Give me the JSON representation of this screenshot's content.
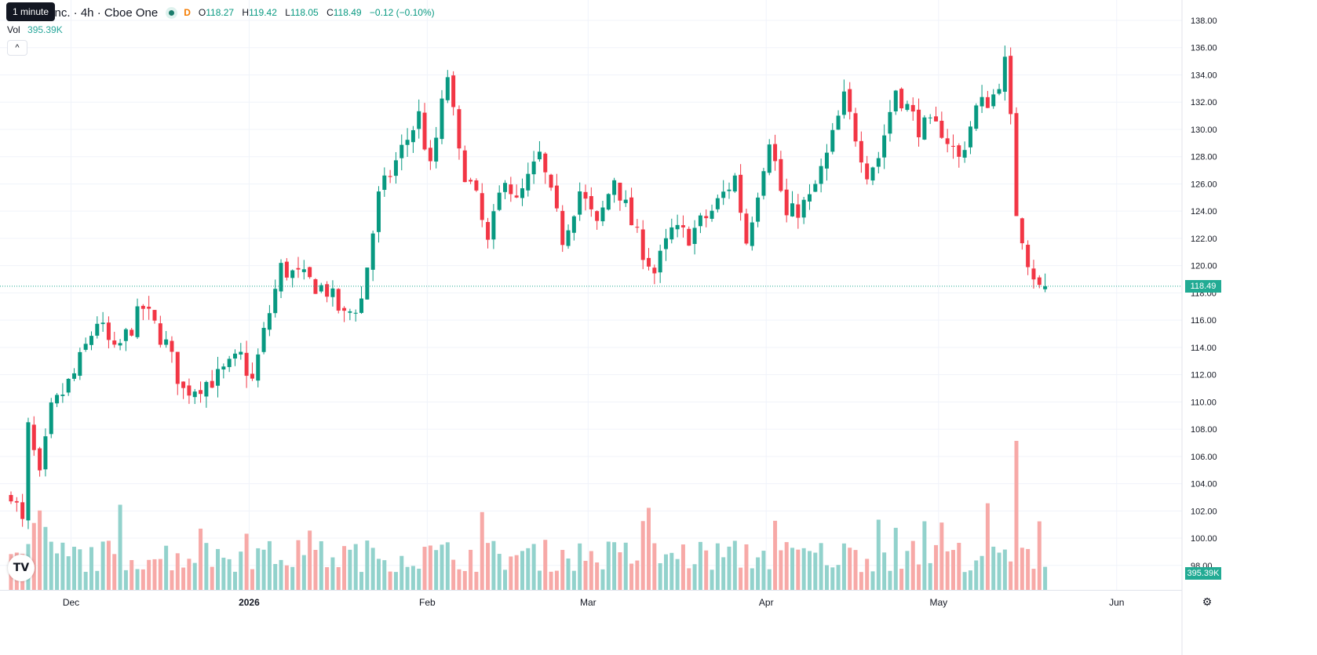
{
  "legend": {
    "symbol_title": "rt Inc. · 4h · Cboe One",
    "daily_badge": "D",
    "open_label": "O",
    "open": "118.27",
    "high_label": "H",
    "high": "119.42",
    "low_label": "L",
    "low": "118.05",
    "close_label": "C",
    "close": "118.49",
    "change": "−0.12 (−0.10%)"
  },
  "tooltip": "1 minute",
  "volume": {
    "label": "Vol",
    "value": "395.39K"
  },
  "collapse_glyph": "^",
  "logo_text": "TV",
  "settings_glyph": "⚙",
  "colors": {
    "up": "#089981",
    "down": "#f23645",
    "vol_up": "#92d2cc",
    "vol_down": "#f7a9a7"
  },
  "icons": [
    "market-status-icon",
    "collapse-icon",
    "tradingview-logo-icon",
    "settings-icon"
  ],
  "chart_data": {
    "type": "candlestick",
    "x_tick_labels": [
      "Dec",
      "2026",
      "Feb",
      "Mar",
      "Apr",
      "May",
      "Jun"
    ],
    "y_ticks": [
      98,
      100,
      102,
      104,
      106,
      108,
      110,
      112,
      114,
      116,
      118,
      120,
      122,
      124,
      126,
      128,
      130,
      132,
      134,
      136,
      138
    ],
    "y_tick_labels": [
      "98.00",
      "100.00",
      "102.00",
      "104.00",
      "106.00",
      "108.00",
      "110.00",
      "112.00",
      "114.00",
      "116.00",
      "118.00",
      "120.00",
      "122.00",
      "124.00",
      "126.00",
      "128.00",
      "130.00",
      "132.00",
      "134.00",
      "136.00",
      "138.00"
    ],
    "ylim": [
      97.5,
      139
    ],
    "last_price": 118.49,
    "last_price_label": "118.49",
    "volume_last_label": "395.39K",
    "grid": true,
    "anchors": [
      {
        "d": "Nov 20",
        "c": 103.5
      },
      {
        "d": "Nov 22",
        "c": 101.0
      },
      {
        "d": "Nov 23",
        "c": 108.0
      },
      {
        "d": "Nov 25",
        "c": 104.3
      },
      {
        "d": "Nov 27",
        "c": 109.3
      },
      {
        "d": "Dec 1",
        "c": 112.0
      },
      {
        "d": "Dec 5",
        "c": 116.0
      },
      {
        "d": "Dec 8",
        "c": 113.5
      },
      {
        "d": "Dec 13",
        "c": 116.9
      },
      {
        "d": "Dec 17",
        "c": 114.2
      },
      {
        "d": "Dec 20",
        "c": 110.8
      },
      {
        "d": "Dec 26",
        "c": 111.8
      },
      {
        "d": "Dec 30",
        "c": 113.3
      },
      {
        "d": "Jan 1",
        "c": 111.5
      },
      {
        "d": "Jan 3",
        "c": 115.0
      },
      {
        "d": "Jan 6",
        "c": 119.8
      },
      {
        "d": "Jan 10",
        "c": 119.0
      },
      {
        "d": "Jan 14",
        "c": 118.2
      },
      {
        "d": "Jan 17",
        "c": 116.2
      },
      {
        "d": "Jan 20",
        "c": 117.5
      },
      {
        "d": "Jan 23",
        "c": 125.0
      },
      {
        "d": "Jan 27",
        "c": 128.5
      },
      {
        "d": "Jan 30",
        "c": 131.0
      },
      {
        "d": "Feb 1",
        "c": 127.0
      },
      {
        "d": "Feb 4",
        "c": 134.0
      },
      {
        "d": "Feb 6",
        "c": 128.0
      },
      {
        "d": "Feb 9",
        "c": 124.8
      },
      {
        "d": "Feb 11",
        "c": 121.5
      },
      {
        "d": "Feb 14",
        "c": 126.8
      },
      {
        "d": "Feb 16",
        "c": 124.5
      },
      {
        "d": "Feb 20",
        "c": 128.0
      },
      {
        "d": "Feb 24",
        "c": 122.0
      },
      {
        "d": "Feb 27",
        "c": 125.5
      },
      {
        "d": "Mar 2",
        "c": 122.8
      },
      {
        "d": "Mar 5",
        "c": 126.5
      },
      {
        "d": "Mar 9",
        "c": 122.0
      },
      {
        "d": "Mar 12",
        "c": 119.5
      },
      {
        "d": "Mar 15",
        "c": 122.5
      },
      {
        "d": "Mar 18",
        "c": 122.2
      },
      {
        "d": "Mar 22",
        "c": 124.0
      },
      {
        "d": "Mar 26",
        "c": 126.5
      },
      {
        "d": "Mar 28",
        "c": 121.8
      },
      {
        "d": "Apr 1",
        "c": 129.5
      },
      {
        "d": "Apr 4",
        "c": 123.5
      },
      {
        "d": "Apr 8",
        "c": 124.8
      },
      {
        "d": "Apr 11",
        "c": 128.0
      },
      {
        "d": "Apr 14",
        "c": 132.2
      },
      {
        "d": "Apr 18",
        "c": 127.0
      },
      {
        "d": "Apr 20",
        "c": 128.0
      },
      {
        "d": "Apr 23",
        "c": 133.0
      },
      {
        "d": "Apr 27",
        "c": 130.2
      },
      {
        "d": "May 1",
        "c": 130.0
      },
      {
        "d": "May 4",
        "c": 127.8
      },
      {
        "d": "May 7",
        "c": 131.5
      },
      {
        "d": "May 10",
        "c": 132.5
      },
      {
        "d": "May 12",
        "c": 134.8
      },
      {
        "d": "May 13",
        "c": 130.5
      },
      {
        "d": "May 14",
        "c": 124.0
      },
      {
        "d": "May 16",
        "c": 120.5
      },
      {
        "d": "May 18",
        "c": 118.3
      },
      {
        "d": "May 19",
        "c": 118.49
      }
    ]
  }
}
